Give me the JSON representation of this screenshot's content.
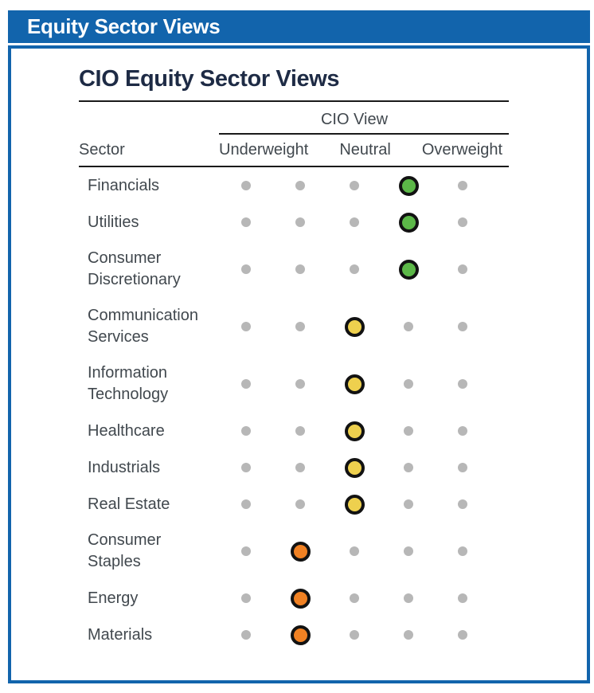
{
  "header_bar": {
    "title": "Equity Sector Views"
  },
  "figure": {
    "title": "CIO Equity Sector Views",
    "group_header": "CIO View",
    "sector_column_header": "Sector",
    "view_labels": [
      "Underweight",
      "Neutral",
      "Overweight"
    ]
  },
  "colors": {
    "accent_blue": "#1264ac",
    "overweight": "#5cb848",
    "neutral": "#eed04e",
    "underweight": "#f08123",
    "inactive_dot": "#b7b7b7",
    "dot_ring": "#121212"
  },
  "chart_data": {
    "type": "table",
    "title": "CIO Equity Sector Views",
    "scale": {
      "points": 5,
      "position_labels": {
        "2": "Underweight",
        "3": "Neutral",
        "4": "Overweight"
      }
    },
    "rows": [
      {
        "sector": "Financials",
        "view": "Overweight",
        "position": 4
      },
      {
        "sector": "Utilities",
        "view": "Overweight",
        "position": 4
      },
      {
        "sector": "Consumer Discretionary",
        "view": "Overweight",
        "position": 4
      },
      {
        "sector": "Communication Services",
        "view": "Neutral",
        "position": 3
      },
      {
        "sector": "Information Technology",
        "view": "Neutral",
        "position": 3
      },
      {
        "sector": "Healthcare",
        "view": "Neutral",
        "position": 3
      },
      {
        "sector": "Industrials",
        "view": "Neutral",
        "position": 3
      },
      {
        "sector": "Real Estate",
        "view": "Neutral",
        "position": 3
      },
      {
        "sector": "Consumer Staples",
        "view": "Underweight",
        "position": 2
      },
      {
        "sector": "Energy",
        "view": "Underweight",
        "position": 2
      },
      {
        "sector": "Materials",
        "view": "Underweight",
        "position": 2
      }
    ]
  }
}
